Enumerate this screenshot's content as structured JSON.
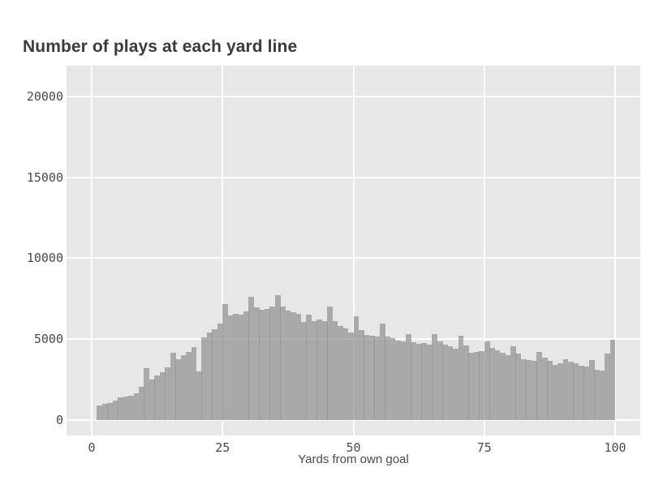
{
  "chart_data": {
    "type": "bar",
    "subtype": "histogram",
    "title": "Number of plays at each yard line",
    "xlabel": "Yards from own goal",
    "ylabel": "",
    "legend": "none",
    "grid": "white major gridlines on grey panel",
    "bin_width": 1,
    "x": [
      1,
      2,
      3,
      4,
      5,
      6,
      7,
      8,
      9,
      10,
      11,
      12,
      13,
      14,
      15,
      16,
      17,
      18,
      19,
      20,
      21,
      22,
      23,
      24,
      25,
      26,
      27,
      28,
      29,
      30,
      31,
      32,
      33,
      34,
      35,
      36,
      37,
      38,
      39,
      40,
      41,
      42,
      43,
      44,
      45,
      46,
      47,
      48,
      49,
      50,
      51,
      52,
      53,
      54,
      55,
      56,
      57,
      58,
      59,
      60,
      61,
      62,
      63,
      64,
      65,
      66,
      67,
      68,
      69,
      70,
      71,
      72,
      73,
      74,
      75,
      76,
      77,
      78,
      79,
      80,
      81,
      82,
      83,
      84,
      85,
      86,
      87,
      88,
      89,
      90,
      91,
      92,
      93,
      94,
      95,
      96,
      97,
      98,
      99
    ],
    "values": [
      900,
      1000,
      1050,
      1200,
      1400,
      1450,
      1500,
      1650,
      2050,
      3200,
      2500,
      2750,
      2950,
      3250,
      4150,
      3750,
      4000,
      4200,
      4500,
      3000,
      5100,
      5400,
      5600,
      5950,
      7150,
      6450,
      6550,
      6500,
      6700,
      7600,
      6950,
      6800,
      6850,
      7000,
      7700,
      7000,
      6750,
      6650,
      6550,
      6050,
      6500,
      6100,
      6200,
      6100,
      7000,
      6100,
      5800,
      5650,
      5400,
      6400,
      5550,
      5250,
      5200,
      5150,
      5950,
      5150,
      5050,
      4900,
      4850,
      5300,
      4800,
      4700,
      4750,
      4650,
      5300,
      4850,
      4650,
      4550,
      4400,
      5200,
      4600,
      4150,
      4200,
      4250,
      4850,
      4450,
      4300,
      4150,
      4000,
      4550,
      4100,
      3750,
      3700,
      3650,
      4200,
      3850,
      3650,
      3400,
      3500,
      3750,
      3600,
      3500,
      3350,
      3300,
      3700,
      3100,
      3050,
      4100,
      4950
    ],
    "xticks": [
      0,
      25,
      50,
      75,
      100
    ],
    "yticks": [
      0,
      5000,
      10000,
      15000,
      20000
    ],
    "x_range": [
      -4.8,
      104.8
    ],
    "y_range": [
      -950,
      21900
    ],
    "colors": {
      "bar": "#a9a9a9",
      "panel_bg": "#e7e7e7",
      "gridline": "#ffffff",
      "title_text": "#3b3b3b",
      "axis_text": "#4a4a4a",
      "page_bg": "#ffffff"
    }
  }
}
